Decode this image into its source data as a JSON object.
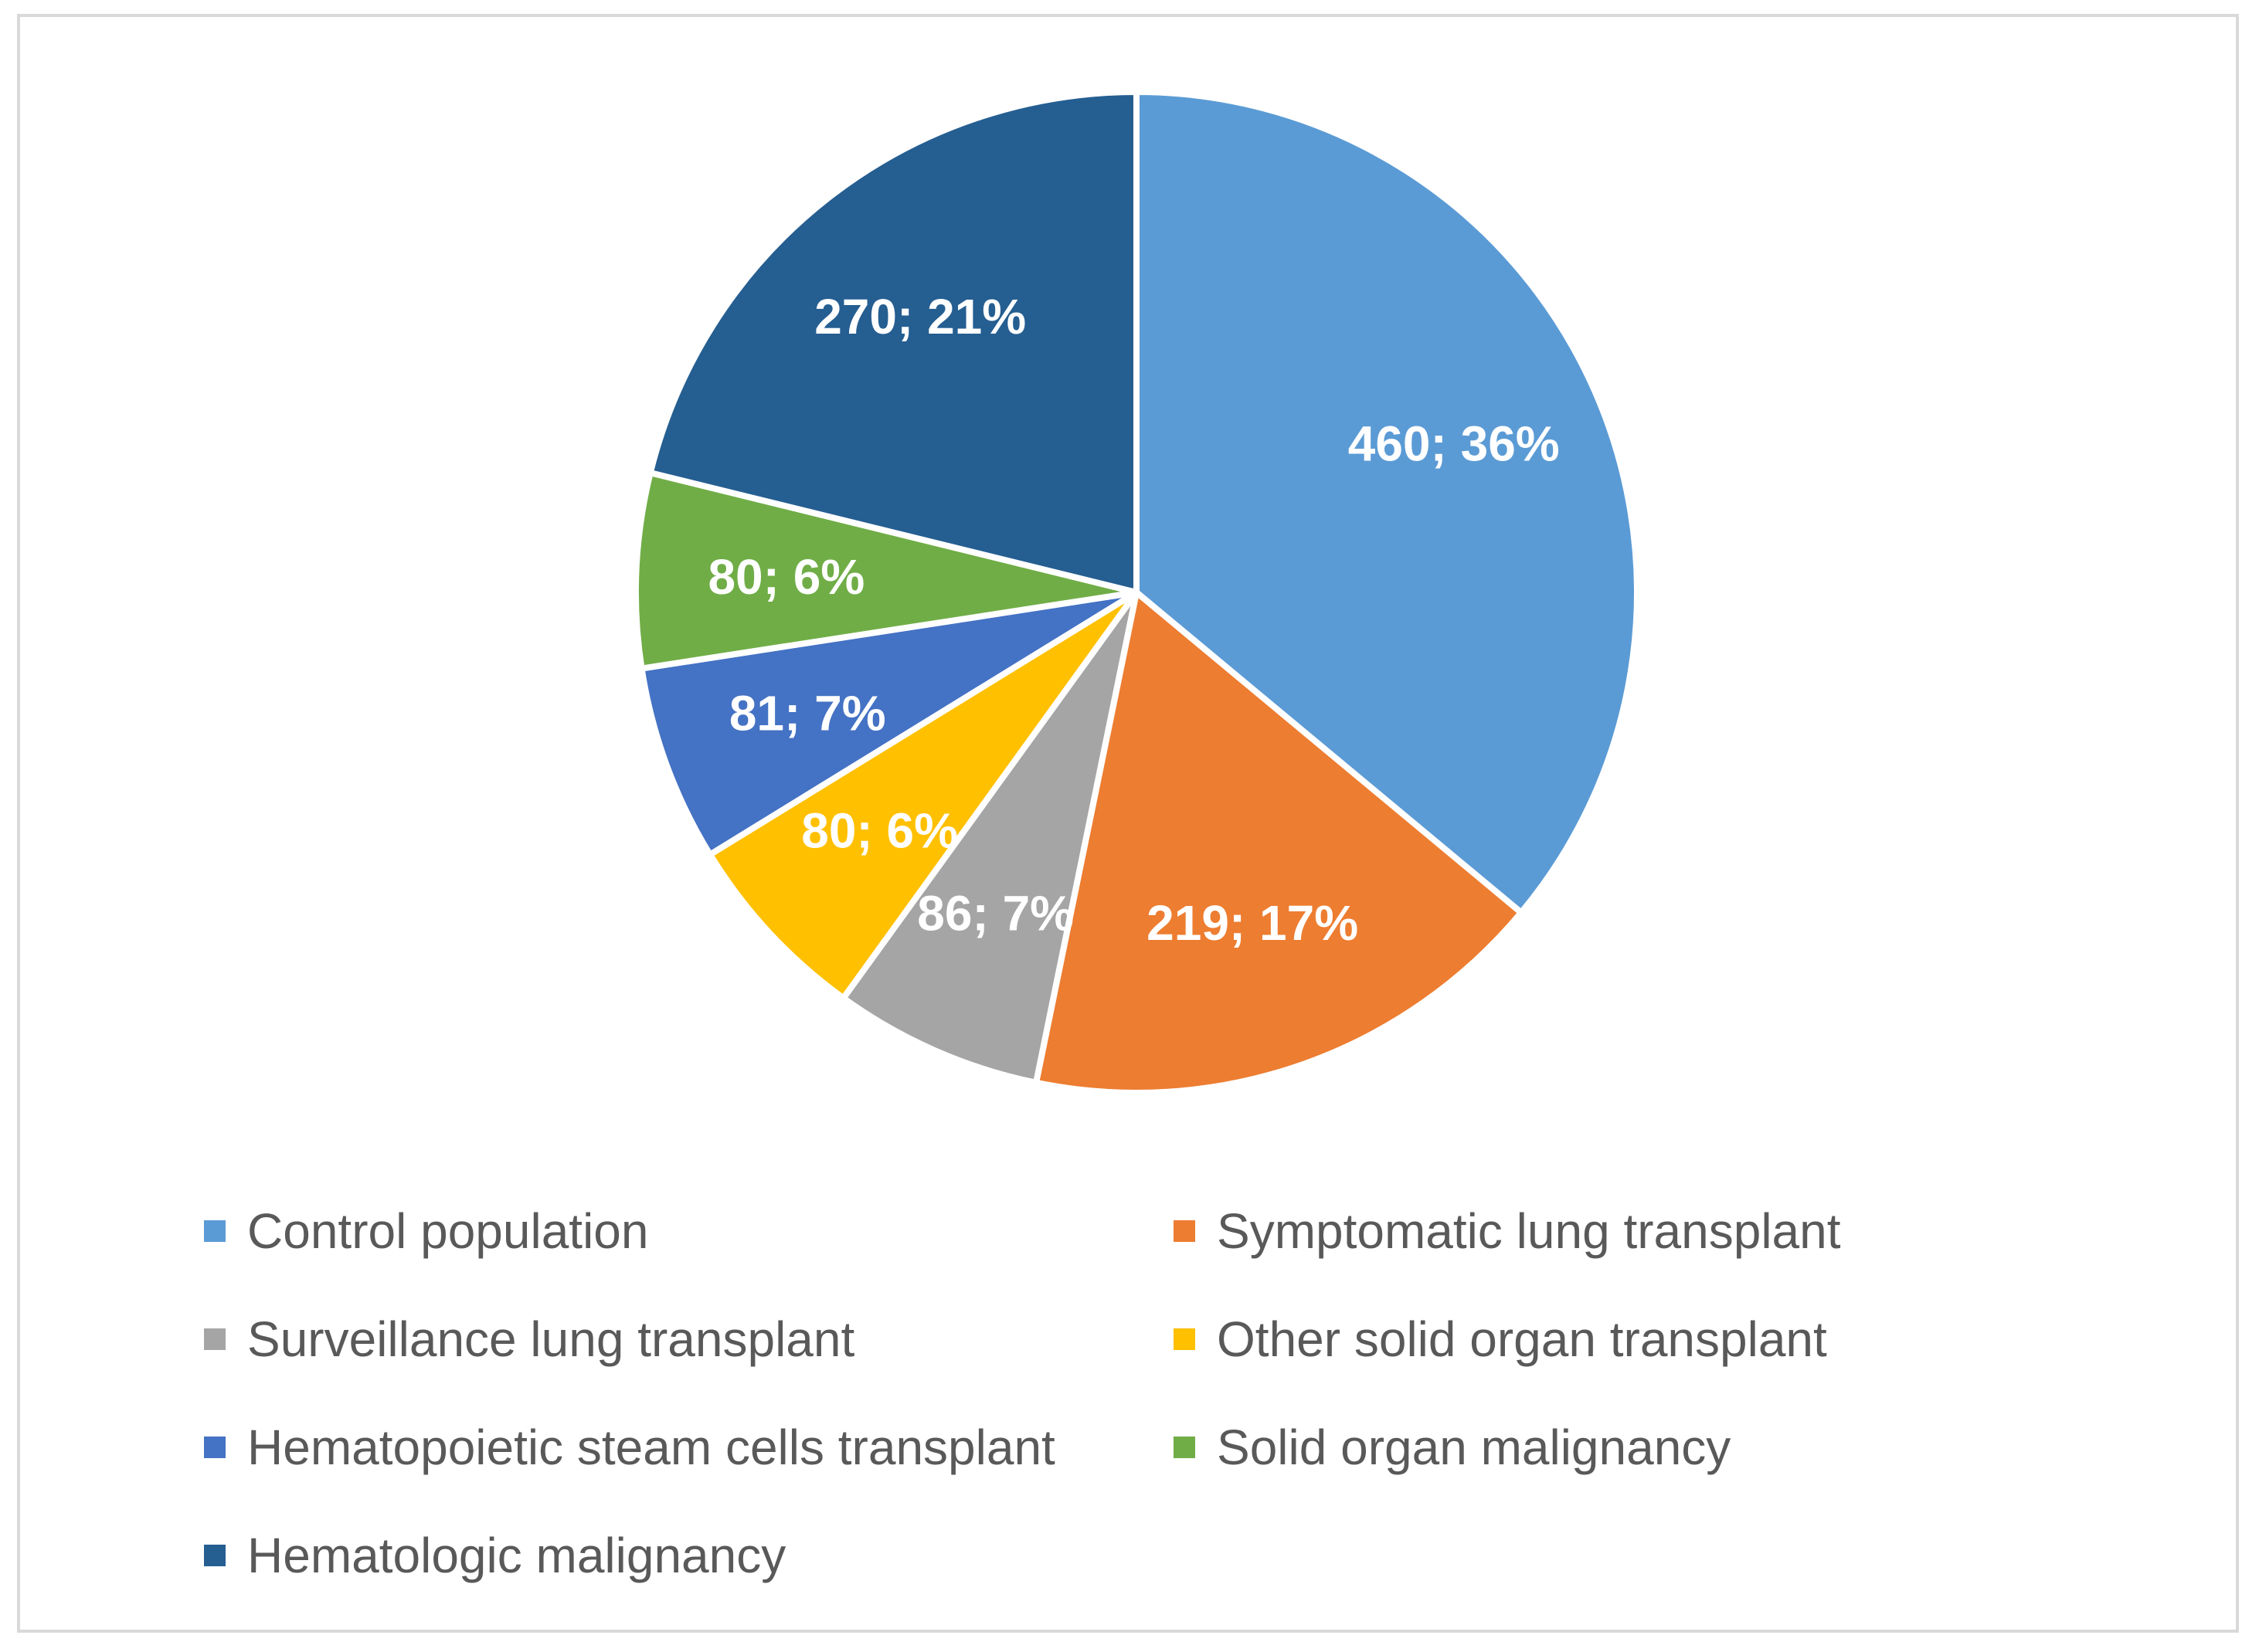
{
  "chart_data": {
    "type": "pie",
    "title": "",
    "start_angle_deg": 0,
    "direction": "clockwise",
    "label_format": "value; percent",
    "legend_position": "bottom",
    "slices": [
      {
        "name": "Control population",
        "value": 460,
        "percent": 36,
        "label": "460; 36%",
        "color": "#5b9bd5"
      },
      {
        "name": "Symptomatic lung transplant",
        "value": 219,
        "percent": 17,
        "label": "219; 17%",
        "color": "#ed7d31"
      },
      {
        "name": "Surveillance lung transplant",
        "value": 86,
        "percent": 7,
        "label": "86; 7%",
        "color": "#a5a5a5"
      },
      {
        "name": "Other solid organ transplant",
        "value": 80,
        "percent": 6,
        "label": "80; 6%",
        "color": "#ffc000"
      },
      {
        "name": "Hematopoietic steam cells transplant",
        "value": 81,
        "percent": 7,
        "label": "81; 7%",
        "color": "#4472c4"
      },
      {
        "name": "Solid organ malignancy",
        "value": 80,
        "percent": 6,
        "label": "80; 6%",
        "color": "#70ad47"
      },
      {
        "name": "Hematologic malignancy",
        "value": 270,
        "percent": 21,
        "label": "270; 21%",
        "color": "#255e91"
      }
    ]
  }
}
